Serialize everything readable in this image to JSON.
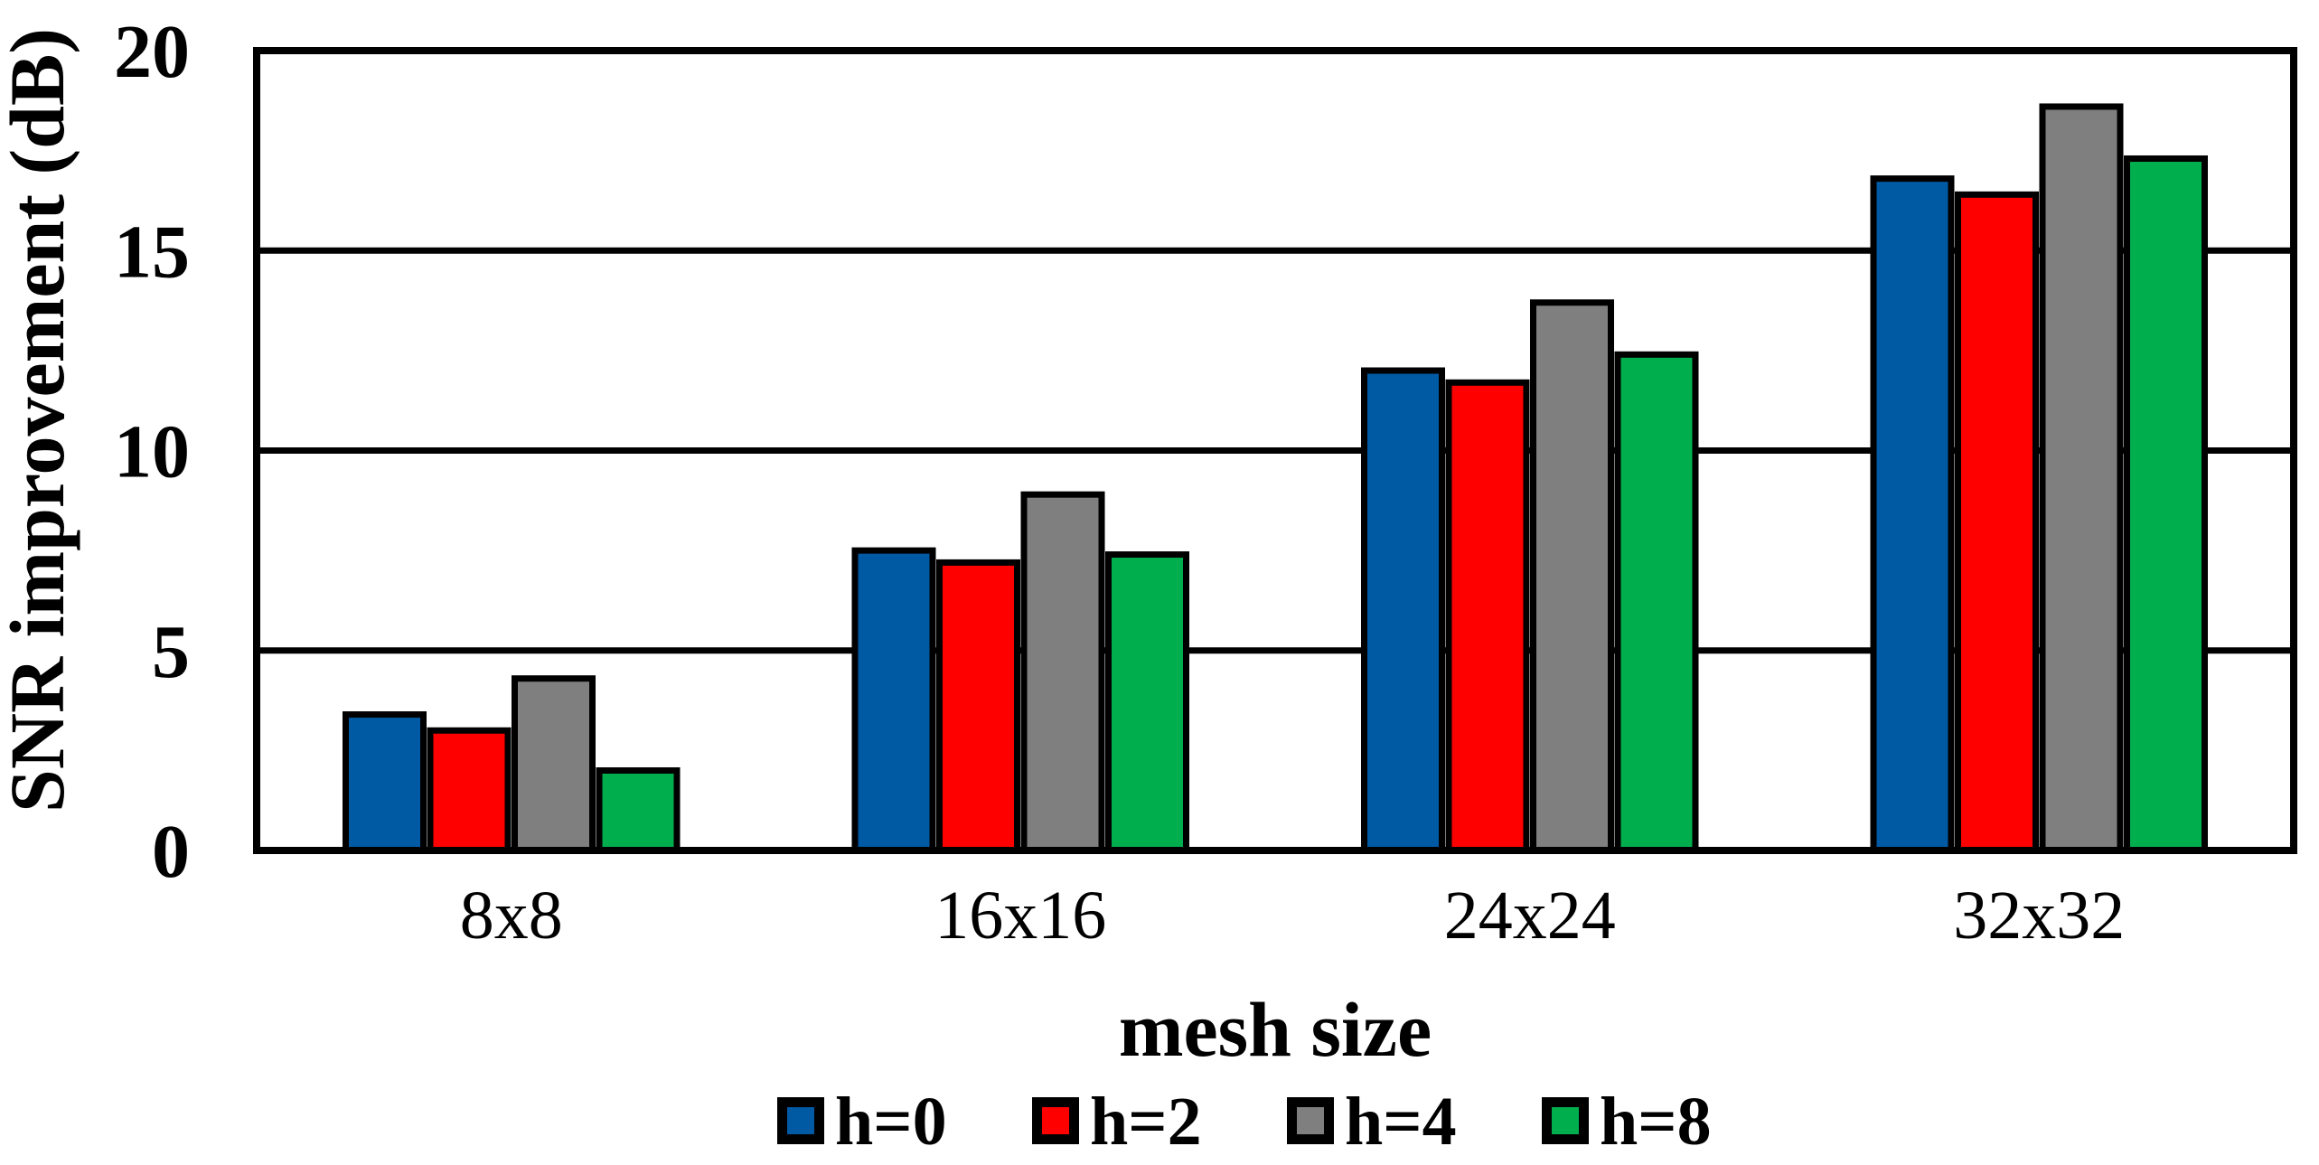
{
  "figure": {
    "background_color": "#FFFFFF",
    "frame_color": "#000000",
    "gridline_color": "#000000"
  },
  "chart_data": {
    "type": "bar",
    "title": "",
    "xlabel": "mesh size",
    "ylabel": "SNR improvement (dB)",
    "categories": [
      "8x8",
      "16x16",
      "24x24",
      "32x32"
    ],
    "series": [
      {
        "name": "h=0",
        "color": "#0059A3",
        "values": [
          3.4,
          7.5,
          12.0,
          16.8
        ]
      },
      {
        "name": "h=2",
        "color": "#FF0000",
        "values": [
          3.0,
          7.2,
          11.7,
          16.4
        ]
      },
      {
        "name": "h=4",
        "color": "#7F7F7F",
        "values": [
          4.3,
          8.9,
          13.7,
          18.6
        ]
      },
      {
        "name": "h=8",
        "color": "#00AE4D",
        "values": [
          2.0,
          7.4,
          12.4,
          17.3
        ]
      }
    ],
    "ylim": [
      0,
      20
    ],
    "yticks": [
      0,
      5,
      10,
      15,
      20
    ],
    "ytick_labels": [
      "0",
      "5",
      "10",
      "15",
      "20"
    ],
    "grid": true,
    "bar_outline_color": "#000000",
    "legend_position": "bottom",
    "legend_labels": [
      "h=0",
      "h=2",
      "h=4",
      "h=8"
    ]
  }
}
